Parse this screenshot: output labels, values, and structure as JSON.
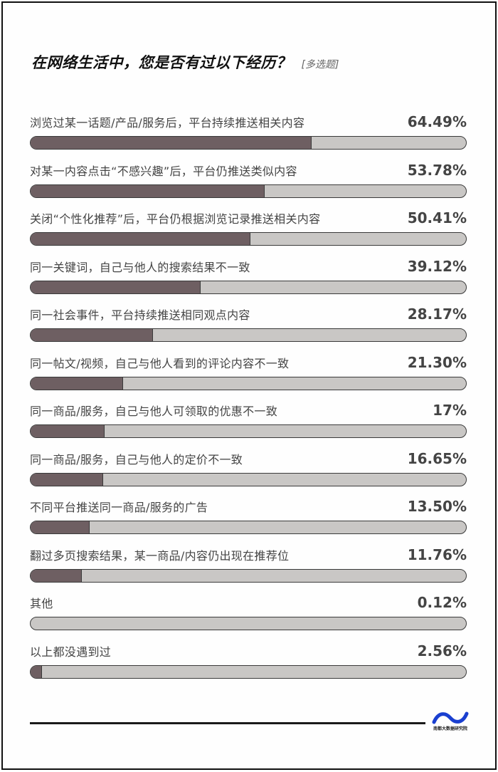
{
  "header": {
    "title": "在网络生活中，您是否有过以下经历？",
    "tag": "[多选题]"
  },
  "footer": {
    "logo_text": "南都大数据研究院",
    "logo_icon": "wave-logo-icon"
  },
  "colors": {
    "fill": "#6e5f62",
    "track": "#c9c7c5",
    "border": "#3a3a3a",
    "logo": "#1a3fd0"
  },
  "items": [
    {
      "label": "浏览过某一话题/产品/服务后，平台持续推送相关内容",
      "pct": "64.49%",
      "value": 64.49
    },
    {
      "label": "对某一内容点击“不感兴趣”后，平台仍推送类似内容",
      "pct": "53.78%",
      "value": 53.78
    },
    {
      "label": "关闭“个性化推荐”后，平台仍根据浏览记录推送相关内容",
      "pct": "50.41%",
      "value": 50.41
    },
    {
      "label": "同一关键词，自己与他人的搜索结果不一致",
      "pct": "39.12%",
      "value": 39.12
    },
    {
      "label": "同一社会事件，平台持续推送相同观点内容",
      "pct": "28.17%",
      "value": 28.17
    },
    {
      "label": "同一帖文/视频，自己与他人看到的评论内容不一致",
      "pct": "21.30%",
      "value": 21.3
    },
    {
      "label": "同一商品/服务，自己与他人可领取的优惠不一致",
      "pct": "17%",
      "value": 17
    },
    {
      "label": "同一商品/服务，自己与他人的定价不一致",
      "pct": "16.65%",
      "value": 16.65
    },
    {
      "label": "不同平台推送同一商品/服务的广告",
      "pct": "13.50%",
      "value": 13.5
    },
    {
      "label": "翻过多页搜索结果，某一商品/内容仍出现在推荐位",
      "pct": "11.76%",
      "value": 11.76
    },
    {
      "label": "其他",
      "pct": "0.12%",
      "value": 0.12
    },
    {
      "label": "以上都没遇到过",
      "pct": "2.56%",
      "value": 2.56
    }
  ],
  "chart_data": {
    "type": "bar",
    "orientation": "horizontal",
    "title": "在网络生活中，您是否有过以下经历？[多选题]",
    "xlabel": "",
    "ylabel": "",
    "xlim": [
      0,
      100
    ],
    "grid": false,
    "legend": null,
    "categories": [
      "浏览过某一话题/产品/服务后，平台持续推送相关内容",
      "对某一内容点击“不感兴趣”后，平台仍推送类似内容",
      "关闭“个性化推荐”后，平台仍根据浏览记录推送相关内容",
      "同一关键词，自己与他人的搜索结果不一致",
      "同一社会事件，平台持续推送相同观点内容",
      "同一帖文/视频，自己与他人看到的评论内容不一致",
      "同一商品/服务，自己与他人可领取的优惠不一致",
      "同一商品/服务，自己与他人的定价不一致",
      "不同平台推送同一商品/服务的广告",
      "翻过多页搜索结果，某一商品/内容仍出现在推荐位",
      "其他",
      "以上都没遇到过"
    ],
    "values": [
      64.49,
      53.78,
      50.41,
      39.12,
      28.17,
      21.3,
      17,
      16.65,
      13.5,
      11.76,
      0.12,
      2.56
    ],
    "data_labels": [
      "64.49%",
      "53.78%",
      "50.41%",
      "39.12%",
      "28.17%",
      "21.30%",
      "17%",
      "16.65%",
      "13.50%",
      "11.76%",
      "0.12%",
      "2.56%"
    ],
    "unit": "%",
    "source": "南都大数据研究院"
  }
}
